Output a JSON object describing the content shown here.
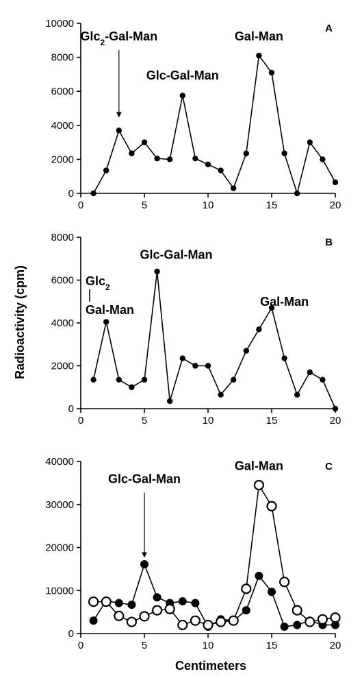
{
  "figure": {
    "ylabel": "Radioactivity (cpm)",
    "xlabel": "Centimeters"
  },
  "chart_data": [
    {
      "type": "line",
      "panel": "A",
      "xlim": [
        0,
        20
      ],
      "ylim": [
        0,
        10000
      ],
      "x_ticks": [
        0,
        5,
        10,
        15,
        20
      ],
      "y_ticks": [
        0,
        2000,
        4000,
        6000,
        8000,
        10000
      ],
      "series": [
        {
          "marker": "filled",
          "x": [
            1,
            2,
            3,
            4,
            5,
            6,
            7,
            8,
            9,
            10,
            11,
            12,
            13,
            14,
            15,
            16,
            17,
            18,
            19,
            20
          ],
          "y": [
            0,
            1350,
            3700,
            2350,
            3000,
            2050,
            2000,
            5750,
            2050,
            1700,
            1350,
            300,
            2350,
            8100,
            7100,
            2350,
            0,
            3000,
            2000,
            650
          ]
        }
      ],
      "annotations": [
        {
          "text": "Glc",
          "sub": "2",
          "text2": "-Gal-Man",
          "x": 3,
          "y": 9000,
          "arrow_to": [
            3,
            4500
          ]
        },
        {
          "text": "Glc-Gal-Man",
          "x": 8,
          "y": 6700
        },
        {
          "text": "Gal-Man",
          "x": 14,
          "y": 9000
        }
      ]
    },
    {
      "type": "line",
      "panel": "B",
      "xlim": [
        0,
        20
      ],
      "ylim": [
        0,
        8000
      ],
      "x_ticks": [
        0,
        5,
        10,
        15,
        20
      ],
      "y_ticks": [
        0,
        2000,
        4000,
        6000,
        8000
      ],
      "series": [
        {
          "marker": "filled",
          "x": [
            1,
            2,
            3,
            4,
            5,
            6,
            7,
            8,
            9,
            10,
            11,
            12,
            13,
            14,
            15,
            16,
            17,
            18,
            19,
            20
          ],
          "y": [
            1350,
            4050,
            1350,
            1000,
            1350,
            6400,
            350,
            2350,
            2000,
            2000,
            650,
            1350,
            2700,
            3700,
            4700,
            2350,
            650,
            1700,
            1350,
            0
          ]
        }
      ],
      "annotations": [
        {
          "text": "Glc-Gal-Man",
          "x": 7.5,
          "y": 7000
        },
        {
          "text": "Glc",
          "sub": "2",
          "x": 1.2,
          "y": 5600
        },
        {
          "text": "Gal-Man",
          "x": 2.2,
          "y": 4300
        },
        {
          "text": "Gal-Man",
          "x": 16,
          "y": 4800
        }
      ]
    },
    {
      "type": "line",
      "panel": "C",
      "xlim": [
        0,
        20
      ],
      "ylim": [
        0,
        40000
      ],
      "x_ticks": [
        0,
        5,
        10,
        15,
        20
      ],
      "y_ticks": [
        0,
        10000,
        20000,
        30000,
        40000
      ],
      "series": [
        {
          "marker": "filled",
          "x": [
            1,
            2,
            3,
            4,
            5,
            6,
            7,
            8,
            9,
            10,
            11,
            12,
            13,
            14,
            15,
            16,
            17,
            18,
            19,
            20
          ],
          "y": [
            3000,
            7600,
            7100,
            6700,
            16100,
            8400,
            7100,
            7500,
            7100,
            1600,
            3300,
            3000,
            5400,
            13400,
            9700,
            1600,
            2000,
            3000,
            2000,
            2000
          ]
        },
        {
          "marker": "open",
          "x": [
            1,
            2,
            3,
            4,
            5,
            6,
            7,
            8,
            9,
            10,
            11,
            12,
            13,
            14,
            15,
            16,
            17,
            18,
            19,
            20
          ],
          "y": [
            7400,
            7400,
            4100,
            2700,
            4000,
            5400,
            5700,
            2000,
            3000,
            2000,
            2700,
            3000,
            10400,
            34500,
            29600,
            12000,
            5400,
            2700,
            3300,
            3700
          ]
        }
      ],
      "annotations": [
        {
          "text": "Glc-Gal-Man",
          "x": 5,
          "y": 35000,
          "arrow_to": [
            5,
            17800
          ]
        },
        {
          "text": "Gal-Man",
          "x": 14,
          "y": 38000
        }
      ]
    }
  ]
}
